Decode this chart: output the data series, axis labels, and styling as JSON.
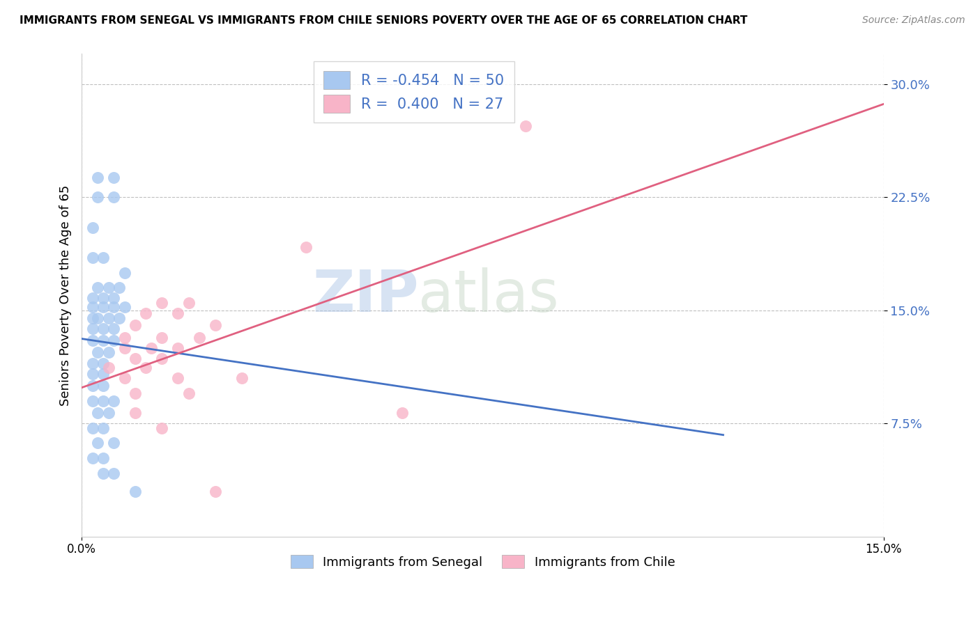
{
  "title": "IMMIGRANTS FROM SENEGAL VS IMMIGRANTS FROM CHILE SENIORS POVERTY OVER THE AGE OF 65 CORRELATION CHART",
  "source": "Source: ZipAtlas.com",
  "ylabel": "Seniors Poverty Over the Age of 65",
  "xlim": [
    0.0,
    0.15
  ],
  "ylim": [
    0.0,
    0.32
  ],
  "yticks": [
    0.075,
    0.15,
    0.225,
    0.3
  ],
  "ytick_labels": [
    "7.5%",
    "15.0%",
    "22.5%",
    "30.0%"
  ],
  "senegal_color": "#a8c8f0",
  "senegal_line_color": "#4472c4",
  "chile_color": "#f8b4c8",
  "chile_line_color": "#e06080",
  "legend_text_color": "#4472c4",
  "senegal_R": -0.454,
  "senegal_N": 50,
  "chile_R": 0.4,
  "chile_N": 27,
  "senegal_points": [
    [
      0.003,
      0.238
    ],
    [
      0.006,
      0.238
    ],
    [
      0.003,
      0.225
    ],
    [
      0.006,
      0.225
    ],
    [
      0.002,
      0.205
    ],
    [
      0.002,
      0.185
    ],
    [
      0.004,
      0.185
    ],
    [
      0.008,
      0.175
    ],
    [
      0.003,
      0.165
    ],
    [
      0.005,
      0.165
    ],
    [
      0.007,
      0.165
    ],
    [
      0.002,
      0.158
    ],
    [
      0.004,
      0.158
    ],
    [
      0.006,
      0.158
    ],
    [
      0.002,
      0.152
    ],
    [
      0.004,
      0.152
    ],
    [
      0.006,
      0.152
    ],
    [
      0.008,
      0.152
    ],
    [
      0.002,
      0.145
    ],
    [
      0.003,
      0.145
    ],
    [
      0.005,
      0.145
    ],
    [
      0.007,
      0.145
    ],
    [
      0.002,
      0.138
    ],
    [
      0.004,
      0.138
    ],
    [
      0.006,
      0.138
    ],
    [
      0.002,
      0.13
    ],
    [
      0.004,
      0.13
    ],
    [
      0.006,
      0.13
    ],
    [
      0.003,
      0.122
    ],
    [
      0.005,
      0.122
    ],
    [
      0.002,
      0.115
    ],
    [
      0.004,
      0.115
    ],
    [
      0.002,
      0.108
    ],
    [
      0.004,
      0.108
    ],
    [
      0.002,
      0.1
    ],
    [
      0.004,
      0.1
    ],
    [
      0.002,
      0.09
    ],
    [
      0.004,
      0.09
    ],
    [
      0.006,
      0.09
    ],
    [
      0.003,
      0.082
    ],
    [
      0.005,
      0.082
    ],
    [
      0.002,
      0.072
    ],
    [
      0.004,
      0.072
    ],
    [
      0.003,
      0.062
    ],
    [
      0.006,
      0.062
    ],
    [
      0.002,
      0.052
    ],
    [
      0.004,
      0.052
    ],
    [
      0.004,
      0.042
    ],
    [
      0.006,
      0.042
    ],
    [
      0.01,
      0.03
    ]
  ],
  "chile_points": [
    [
      0.083,
      0.272
    ],
    [
      0.042,
      0.192
    ],
    [
      0.015,
      0.155
    ],
    [
      0.02,
      0.155
    ],
    [
      0.012,
      0.148
    ],
    [
      0.018,
      0.148
    ],
    [
      0.01,
      0.14
    ],
    [
      0.025,
      0.14
    ],
    [
      0.008,
      0.132
    ],
    [
      0.015,
      0.132
    ],
    [
      0.022,
      0.132
    ],
    [
      0.008,
      0.125
    ],
    [
      0.013,
      0.125
    ],
    [
      0.018,
      0.125
    ],
    [
      0.01,
      0.118
    ],
    [
      0.015,
      0.118
    ],
    [
      0.005,
      0.112
    ],
    [
      0.012,
      0.112
    ],
    [
      0.008,
      0.105
    ],
    [
      0.018,
      0.105
    ],
    [
      0.03,
      0.105
    ],
    [
      0.01,
      0.095
    ],
    [
      0.02,
      0.095
    ],
    [
      0.01,
      0.082
    ],
    [
      0.06,
      0.082
    ],
    [
      0.015,
      0.072
    ],
    [
      0.025,
      0.03
    ]
  ]
}
